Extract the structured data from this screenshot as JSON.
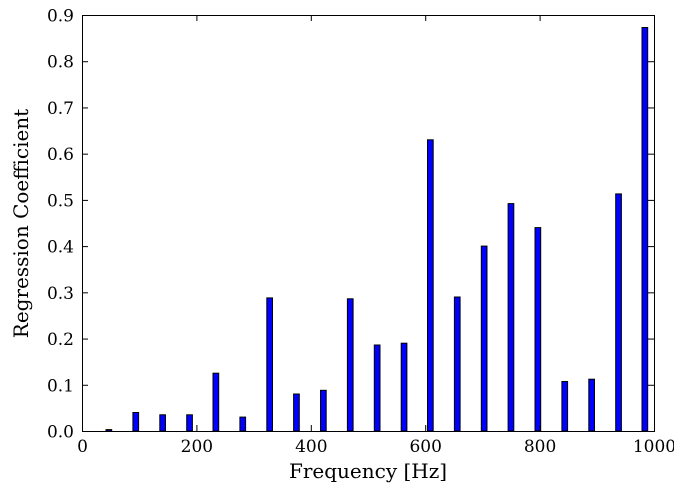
{
  "chart_data": {
    "type": "bar",
    "title": "",
    "xlabel": "Frequency [Hz]",
    "ylabel": "Regression Coefficient",
    "xlim": [
      0,
      1000
    ],
    "ylim": [
      0,
      0.9
    ],
    "xticks": [
      0,
      200,
      400,
      600,
      800,
      1000
    ],
    "xtick_labels": [
      "0",
      "200",
      "400",
      "600",
      "800",
      "1000"
    ],
    "yticks": [
      0.0,
      0.1,
      0.2,
      0.3,
      0.4,
      0.5,
      0.6,
      0.7,
      0.8,
      0.9
    ],
    "ytick_labels": [
      "0.0",
      "0.1",
      "0.2",
      "0.3",
      "0.4",
      "0.5",
      "0.6",
      "0.7",
      "0.8",
      "0.9"
    ],
    "bar_color": "#0000ff",
    "bar_width": 10,
    "grid": false,
    "x": [
      47,
      94,
      141,
      188,
      234,
      281,
      328,
      375,
      422,
      469,
      516,
      563,
      609,
      656,
      703,
      750,
      797,
      844,
      891,
      938,
      984
    ],
    "values": [
      0.003,
      0.04,
      0.035,
      0.035,
      0.125,
      0.03,
      0.288,
      0.08,
      0.088,
      0.286,
      0.186,
      0.19,
      0.63,
      0.29,
      0.4,
      0.492,
      0.44,
      0.107,
      0.112,
      0.513,
      0.873
    ]
  }
}
